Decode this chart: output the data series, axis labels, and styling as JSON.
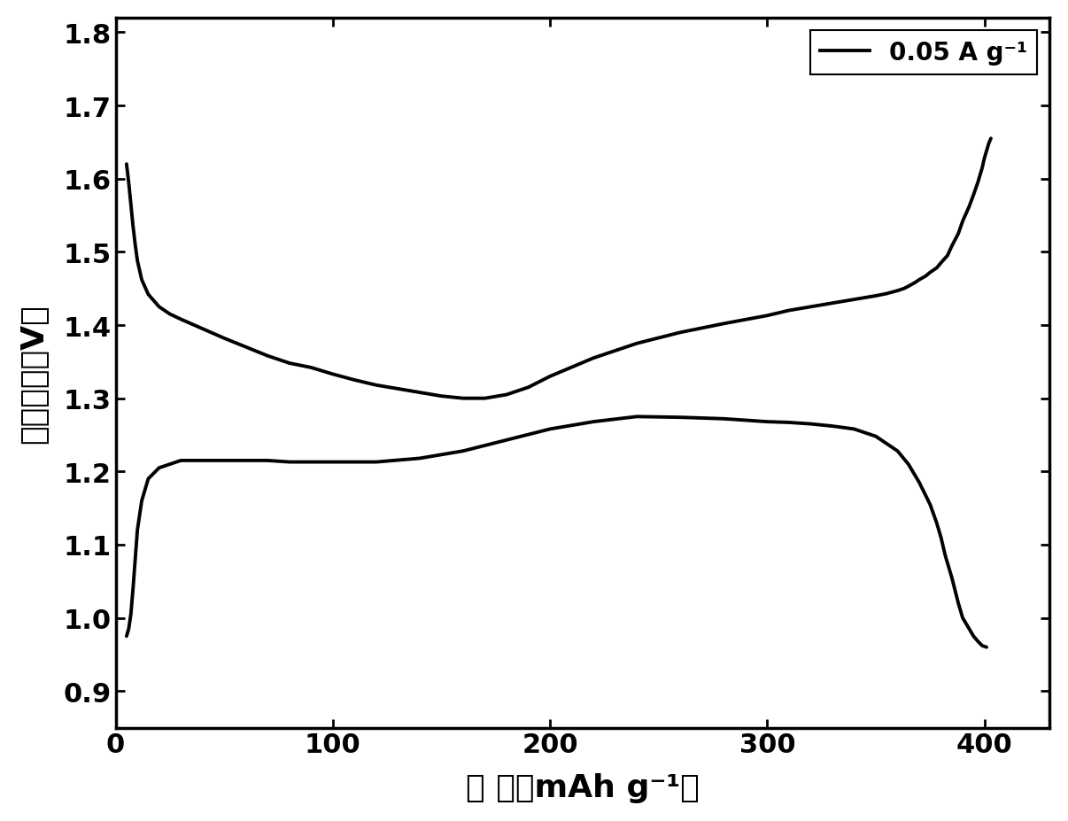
{
  "discharge_x": [
    5,
    6,
    7,
    8,
    9,
    10,
    12,
    15,
    20,
    30,
    40,
    50,
    60,
    70,
    80,
    100,
    120,
    140,
    160,
    180,
    200,
    220,
    240,
    260,
    280,
    300,
    310,
    320,
    330,
    340,
    350,
    360,
    365,
    370,
    375,
    378,
    380,
    382,
    385,
    388,
    390,
    393,
    395,
    397,
    399,
    401
  ],
  "discharge_y": [
    0.975,
    0.985,
    1.005,
    1.04,
    1.08,
    1.12,
    1.16,
    1.19,
    1.205,
    1.215,
    1.215,
    1.215,
    1.215,
    1.215,
    1.213,
    1.213,
    1.213,
    1.218,
    1.228,
    1.243,
    1.258,
    1.268,
    1.275,
    1.274,
    1.272,
    1.268,
    1.267,
    1.265,
    1.262,
    1.258,
    1.248,
    1.228,
    1.21,
    1.185,
    1.155,
    1.13,
    1.11,
    1.085,
    1.055,
    1.02,
    1.0,
    0.985,
    0.975,
    0.968,
    0.962,
    0.96
  ],
  "charge_x": [
    5,
    6,
    7,
    8,
    9,
    10,
    12,
    15,
    20,
    25,
    30,
    40,
    50,
    60,
    70,
    80,
    90,
    100,
    110,
    120,
    130,
    140,
    150,
    160,
    170,
    180,
    190,
    200,
    220,
    240,
    260,
    280,
    300,
    310,
    320,
    330,
    340,
    350,
    355,
    360,
    363,
    365,
    368,
    370,
    373,
    375,
    378,
    380,
    383,
    385,
    388,
    390,
    393,
    395,
    397,
    399,
    400,
    401,
    402,
    403
  ],
  "charge_y": [
    1.62,
    1.595,
    1.565,
    1.535,
    1.51,
    1.488,
    1.462,
    1.442,
    1.425,
    1.415,
    1.408,
    1.395,
    1.382,
    1.37,
    1.358,
    1.348,
    1.342,
    1.333,
    1.325,
    1.318,
    1.313,
    1.308,
    1.303,
    1.3,
    1.3,
    1.305,
    1.315,
    1.33,
    1.355,
    1.375,
    1.39,
    1.402,
    1.413,
    1.42,
    1.425,
    1.43,
    1.435,
    1.44,
    1.443,
    1.447,
    1.45,
    1.453,
    1.458,
    1.462,
    1.467,
    1.472,
    1.478,
    1.485,
    1.495,
    1.508,
    1.525,
    1.542,
    1.562,
    1.578,
    1.595,
    1.615,
    1.628,
    1.638,
    1.648,
    1.655
  ],
  "xlim": [
    0,
    430
  ],
  "ylim": [
    0.85,
    1.82
  ],
  "xticks": [
    0,
    100,
    200,
    300,
    400
  ],
  "yticks": [
    0.9,
    1.0,
    1.1,
    1.2,
    1.3,
    1.4,
    1.5,
    1.6,
    1.7,
    1.8
  ],
  "xlabel": "容 量（mAh g⁻¹）",
  "ylabel": "电池电压（V）",
  "legend_label": "0.05 A g⁻¹",
  "line_color": "#000000",
  "line_width": 2.8,
  "background_color": "#ffffff",
  "tick_fontsize": 22,
  "label_fontsize": 26,
  "legend_fontsize": 20
}
